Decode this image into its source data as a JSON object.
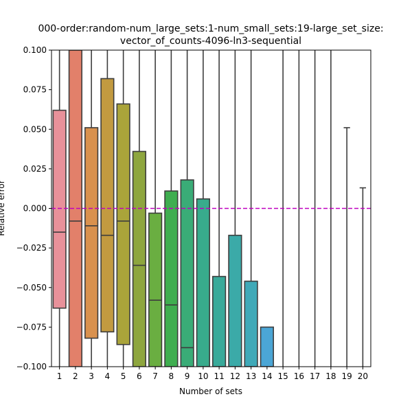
{
  "chart_data": {
    "type": "box",
    "title_lines": [
      "000-order:random-num_large_sets:1-num_small_sets:19-large_set_size:",
      "vector_of_counts-4096-ln3-sequential"
    ],
    "xlabel": "Number of sets",
    "ylabel": "Relative error",
    "ylim": [
      -0.1,
      0.1
    ],
    "yticks": [
      -0.1,
      -0.075,
      -0.05,
      -0.025,
      0.0,
      0.025,
      0.05,
      0.075,
      0.1
    ],
    "ytick_labels": [
      "−0.100",
      "−0.075",
      "−0.050",
      "−0.025",
      "0.000",
      "0.025",
      "0.050",
      "0.075",
      "0.100"
    ],
    "reference_line": {
      "y": 0.0,
      "color": "#bf00bf",
      "style": "dashed"
    },
    "categories": [
      "1",
      "2",
      "3",
      "4",
      "5",
      "6",
      "7",
      "8",
      "9",
      "10",
      "11",
      "12",
      "13",
      "14",
      "15",
      "16",
      "17",
      "18",
      "19",
      "20"
    ],
    "boxes": [
      {
        "x": "1",
        "q1": -0.063,
        "median": -0.015,
        "q3": 0.062,
        "whisker_low": -0.1,
        "whisker_high": 0.1,
        "color": "#e8919a"
      },
      {
        "x": "2",
        "q1": -0.1,
        "median": -0.008,
        "q3": 0.1,
        "whisker_low": -0.1,
        "whisker_high": 0.1,
        "color": "#e2806a"
      },
      {
        "x": "3",
        "q1": -0.082,
        "median": -0.011,
        "q3": 0.051,
        "whisker_low": -0.1,
        "whisker_high": 0.1,
        "color": "#d9914e"
      },
      {
        "x": "4",
        "q1": -0.078,
        "median": -0.017,
        "q3": 0.082,
        "whisker_low": -0.1,
        "whisker_high": 0.1,
        "color": "#c29a40"
      },
      {
        "x": "5",
        "q1": -0.086,
        "median": -0.008,
        "q3": 0.066,
        "whisker_low": -0.1,
        "whisker_high": 0.1,
        "color": "#aaa43a"
      },
      {
        "x": "6",
        "q1": -0.1,
        "median": -0.036,
        "q3": 0.036,
        "whisker_low": -0.1,
        "whisker_high": 0.1,
        "color": "#8ea63e"
      },
      {
        "x": "7",
        "q1": -0.1,
        "median": -0.058,
        "q3": -0.003,
        "whisker_low": -0.1,
        "whisker_high": 0.1,
        "color": "#6aae41"
      },
      {
        "x": "8",
        "q1": -0.1,
        "median": -0.061,
        "q3": 0.011,
        "whisker_low": -0.1,
        "whisker_high": 0.1,
        "color": "#3fae50"
      },
      {
        "x": "9",
        "q1": -0.1,
        "median": -0.088,
        "q3": 0.018,
        "whisker_low": -0.1,
        "whisker_high": 0.1,
        "color": "#3aac77"
      },
      {
        "x": "10",
        "q1": -0.1,
        "median": -0.1,
        "q3": 0.006,
        "whisker_low": -0.1,
        "whisker_high": 0.1,
        "color": "#38ab8c"
      },
      {
        "x": "11",
        "q1": -0.1,
        "median": -0.1,
        "q3": -0.043,
        "whisker_low": -0.1,
        "whisker_high": 0.1,
        "color": "#39aa9a"
      },
      {
        "x": "12",
        "q1": -0.1,
        "median": -0.1,
        "q3": -0.017,
        "whisker_low": -0.1,
        "whisker_high": 0.1,
        "color": "#3baaa8"
      },
      {
        "x": "13",
        "q1": -0.1,
        "median": -0.1,
        "q3": -0.046,
        "whisker_low": -0.1,
        "whisker_high": 0.1,
        "color": "#3fa9b8"
      },
      {
        "x": "14",
        "q1": -0.1,
        "median": -0.1,
        "q3": -0.075,
        "whisker_low": -0.1,
        "whisker_high": -0.075,
        "color": "#4ba6d6"
      },
      {
        "x": "15",
        "q1": -0.1,
        "median": -0.1,
        "q3": -0.1,
        "whisker_low": -0.1,
        "whisker_high": 0.1,
        "color": "#6aa0e0"
      },
      {
        "x": "16",
        "q1": -0.1,
        "median": -0.1,
        "q3": -0.1,
        "whisker_low": -0.1,
        "whisker_high": 0.1,
        "color": "#8c96e6"
      },
      {
        "x": "17",
        "q1": -0.1,
        "median": -0.1,
        "q3": -0.1,
        "whisker_low": -0.1,
        "whisker_high": 0.1,
        "color": "#a98de8"
      },
      {
        "x": "18",
        "q1": -0.1,
        "median": -0.1,
        "q3": -0.1,
        "whisker_low": -0.1,
        "whisker_high": 0.1,
        "color": "#c785e4"
      },
      {
        "x": "19",
        "q1": -0.1,
        "median": -0.1,
        "q3": -0.1,
        "whisker_low": -0.1,
        "whisker_high": 0.051,
        "color": "#e083d8"
      },
      {
        "x": "20",
        "q1": -0.1,
        "median": -0.1,
        "q3": -0.1,
        "whisker_low": -0.1,
        "whisker_high": 0.013,
        "color": "#e889c4"
      }
    ]
  }
}
